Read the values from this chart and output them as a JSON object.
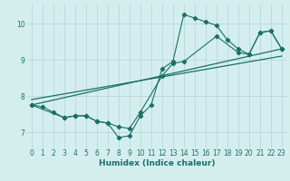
{
  "xlabel": "Humidex (Indice chaleur)",
  "bg_color": "#d4eeee",
  "grid_color": "#b8d8d8",
  "line_color": "#1a7068",
  "xlim": [
    -0.5,
    23.5
  ],
  "ylim": [
    6.55,
    10.55
  ],
  "xticks": [
    0,
    1,
    2,
    3,
    4,
    5,
    6,
    7,
    8,
    9,
    10,
    11,
    12,
    13,
    14,
    15,
    16,
    17,
    18,
    19,
    20,
    21,
    22,
    23
  ],
  "yticks": [
    7,
    8,
    9,
    10
  ],
  "line1": {
    "x": [
      0,
      1,
      2,
      3,
      4,
      5,
      6,
      7,
      8,
      9,
      10,
      11,
      12,
      13,
      14,
      15,
      16,
      17,
      18,
      19,
      20,
      21,
      22,
      23
    ],
    "y": [
      7.75,
      7.7,
      7.55,
      7.4,
      7.45,
      7.45,
      7.3,
      7.25,
      6.85,
      6.9,
      7.45,
      7.75,
      8.75,
      8.95,
      10.25,
      10.15,
      10.05,
      9.95,
      9.55,
      9.3,
      9.15,
      9.75,
      9.8,
      9.3
    ]
  },
  "line2": {
    "x": [
      0,
      3,
      4,
      5,
      6,
      7,
      8,
      9,
      10,
      12,
      13,
      14,
      17,
      19,
      20,
      21,
      22,
      23
    ],
    "y": [
      7.75,
      7.4,
      7.45,
      7.45,
      7.3,
      7.25,
      7.15,
      7.1,
      7.55,
      8.55,
      8.9,
      8.95,
      9.65,
      9.2,
      9.15,
      9.75,
      9.8,
      9.3
    ]
  },
  "straight1": {
    "x": [
      0,
      23
    ],
    "y": [
      7.75,
      9.3
    ]
  },
  "straight2": {
    "x": [
      0,
      23
    ],
    "y": [
      7.9,
      9.1
    ]
  }
}
